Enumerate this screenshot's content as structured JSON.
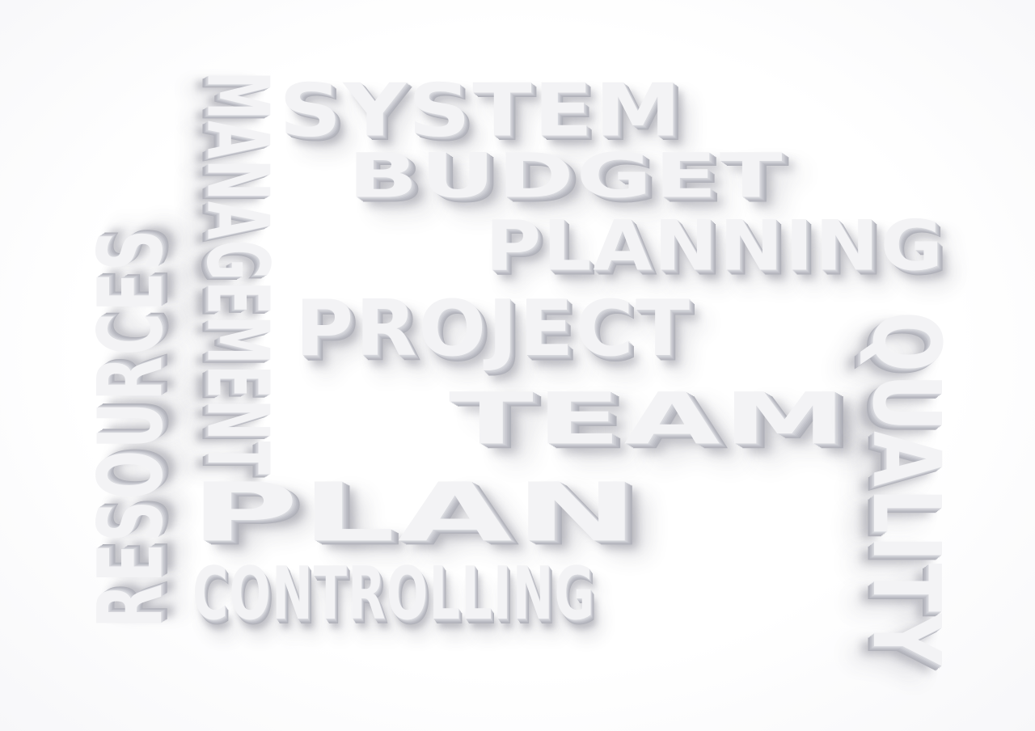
{
  "words": {
    "system": "SYSTEM",
    "budget": "BUDGET",
    "planning": "PLANNING",
    "management": "MANAGEMENT",
    "resources": "RESOURCES",
    "project": "PROJECT",
    "team": "TEAM",
    "quality": "QUALITY",
    "plan": "PLAN",
    "controlling": "CONTROLLING"
  },
  "colors": {
    "background": "#ffffff",
    "letter_face": "#f3f3f5",
    "letter_side": "#c6c7ce",
    "shadow": "#3c3e50"
  }
}
